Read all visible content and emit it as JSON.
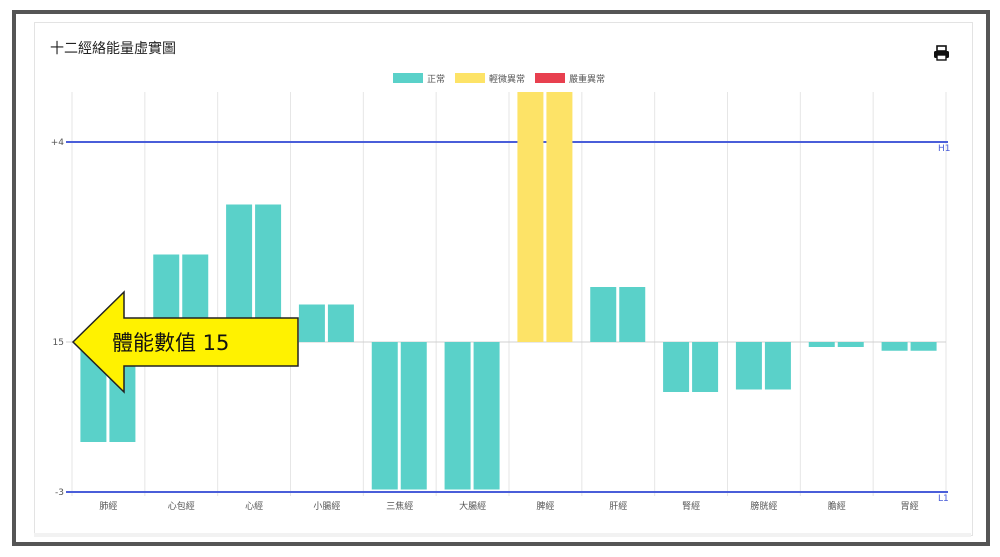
{
  "title": "十二經絡能量虛實圖",
  "print_icon": "printer-icon",
  "chart_data": {
    "type": "bar",
    "title": "十二經絡能量虛實圖",
    "categories": [
      "肺經",
      "心包經",
      "心經",
      "小腸經",
      "三焦經",
      "大腸經",
      "脾經",
      "肝經",
      "腎經",
      "膀胱經",
      "膽經",
      "胃經"
    ],
    "baseline": 15,
    "values": [
      -4,
      3.5,
      5.5,
      1.5,
      -5.9,
      -5.9,
      10,
      2.2,
      -2,
      -1.9,
      -0.2,
      -0.35
    ],
    "status": [
      "normal",
      "normal",
      "normal",
      "normal",
      "normal",
      "normal",
      "mild",
      "normal",
      "normal",
      "normal",
      "normal",
      "normal"
    ],
    "legend": [
      {
        "key": "normal",
        "label": "正常",
        "color": "#5ad1c9"
      },
      {
        "key": "mild",
        "label": "輕微異常",
        "color": "#fde367"
      },
      {
        "key": "severe",
        "label": "嚴重異常",
        "color": "#e8404f"
      }
    ],
    "legend_position": "top-center",
    "yticks": [
      {
        "label": "+4",
        "value": 8
      },
      {
        "label": "15",
        "value": 0
      },
      {
        "label": "-3",
        "value": -6
      }
    ],
    "ylim": [
      -6,
      10
    ],
    "reference_lines": [
      {
        "label": "H1",
        "value": 8,
        "color": "#4a5ed9"
      },
      {
        "label": "L1",
        "value": -6,
        "color": "#4a5ed9"
      }
    ],
    "grid": "vertical"
  },
  "annotation": {
    "text": "體能數值 15",
    "color": "#fff200"
  }
}
